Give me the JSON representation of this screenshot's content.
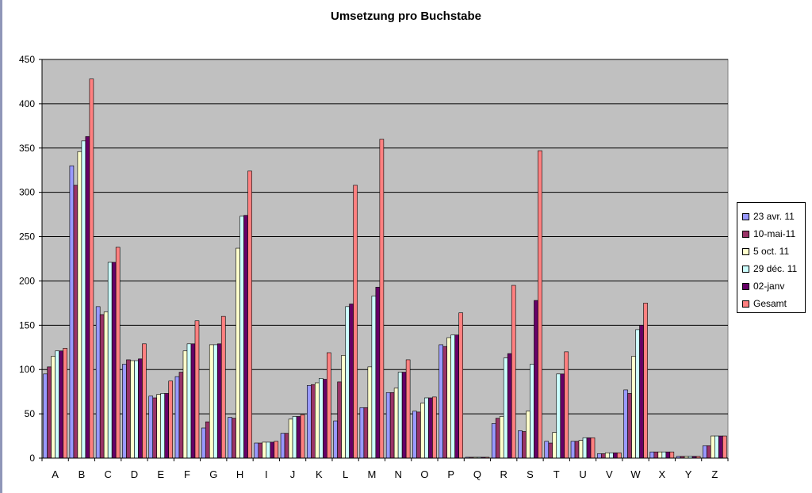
{
  "chart_data": {
    "type": "bar",
    "title": "Umsetzung pro Buchstabe",
    "xlabel": "",
    "ylabel": "",
    "ylim": [
      0,
      450
    ],
    "yticks": [
      0,
      50,
      100,
      150,
      200,
      250,
      300,
      350,
      400,
      450
    ],
    "grid": true,
    "legend_position": "right",
    "background": "#c0c0c0",
    "categories": [
      "A",
      "B",
      "C",
      "D",
      "E",
      "F",
      "G",
      "H",
      "I",
      "J",
      "K",
      "L",
      "M",
      "N",
      "O",
      "P",
      "Q",
      "R",
      "S",
      "T",
      "U",
      "V",
      "W",
      "X",
      "Y",
      "Z"
    ],
    "series": [
      {
        "name": "23 avr. 11",
        "color": "#9999ff",
        "values": [
          95,
          330,
          171,
          106,
          70,
          92,
          34,
          46,
          17,
          28,
          82,
          42,
          57,
          74,
          53,
          128,
          1,
          39,
          31,
          19,
          19,
          5,
          77,
          7,
          2,
          14
        ]
      },
      {
        "name": "10-mai-11",
        "color": "#993366",
        "values": [
          103,
          308,
          162,
          111,
          68,
          97,
          41,
          45,
          17,
          28,
          83,
          86,
          57,
          74,
          52,
          126,
          1,
          45,
          30,
          17,
          19,
          5,
          73,
          7,
          2,
          14
        ]
      },
      {
        "name": "5 oct. 11",
        "color": "#ffffcc",
        "values": [
          115,
          346,
          165,
          110,
          72,
          121,
          128,
          237,
          18,
          44,
          85,
          116,
          103,
          79,
          62,
          136,
          1,
          47,
          53,
          29,
          20,
          6,
          115,
          7,
          2,
          25
        ]
      },
      {
        "name": "29 déc. 11",
        "color": "#ccffff",
        "values": [
          121,
          358,
          221,
          110,
          73,
          129,
          128,
          273,
          18,
          47,
          90,
          171,
          183,
          97,
          68,
          139,
          1,
          113,
          106,
          95,
          23,
          6,
          145,
          7,
          2,
          25
        ]
      },
      {
        "name": "02-janv",
        "color": "#660066",
        "values": [
          121,
          363,
          221,
          112,
          73,
          129,
          129,
          274,
          18,
          47,
          89,
          174,
          193,
          97,
          68,
          139,
          1,
          118,
          178,
          95,
          23,
          6,
          150,
          7,
          2,
          25
        ]
      },
      {
        "name": "Gesamt",
        "color": "#ff8080",
        "values": [
          124,
          428,
          238,
          129,
          87,
          155,
          160,
          324,
          19,
          49,
          119,
          308,
          360,
          111,
          69,
          164,
          1,
          195,
          347,
          120,
          23,
          6,
          175,
          7,
          2,
          25
        ]
      }
    ]
  }
}
